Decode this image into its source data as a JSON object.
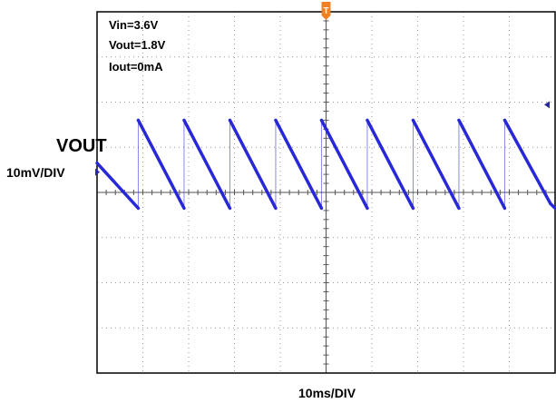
{
  "chart_data": {
    "type": "line",
    "title": "",
    "channel_label": "VOUT",
    "ylabel": "10mV/DIV",
    "xlabel": "10ms/DIV",
    "annotations": [
      "Vin=3.6V",
      "Vout=1.8V",
      "Iout=0mA"
    ],
    "x_divisions": 10,
    "y_divisions": 8,
    "xlim": [
      0,
      100
    ],
    "grid": true,
    "trigger_marker": "T",
    "trace_color": "#2828d8",
    "series": [
      {
        "name": "",
        "x": [
          0,
          9.0,
          9.0,
          19.0,
          19.0,
          29.0,
          29.0,
          39.0,
          39.0,
          49.0,
          49.0,
          59.0,
          59.0,
          69.0,
          69.0,
          79.0,
          79.0,
          89.0,
          89.0,
          99.0,
          100
        ],
        "y": [
          6.5,
          -3.5,
          16.0,
          -3.5,
          16.0,
          -3.5,
          16.0,
          -3.5,
          16.0,
          -3.5,
          16.0,
          -3.5,
          16.0,
          -3.5,
          16.0,
          -3.5,
          16.0,
          -3.5,
          16.0,
          -2.5,
          -3.5
        ]
      }
    ],
    "ylim": [
      -40,
      40
    ]
  }
}
